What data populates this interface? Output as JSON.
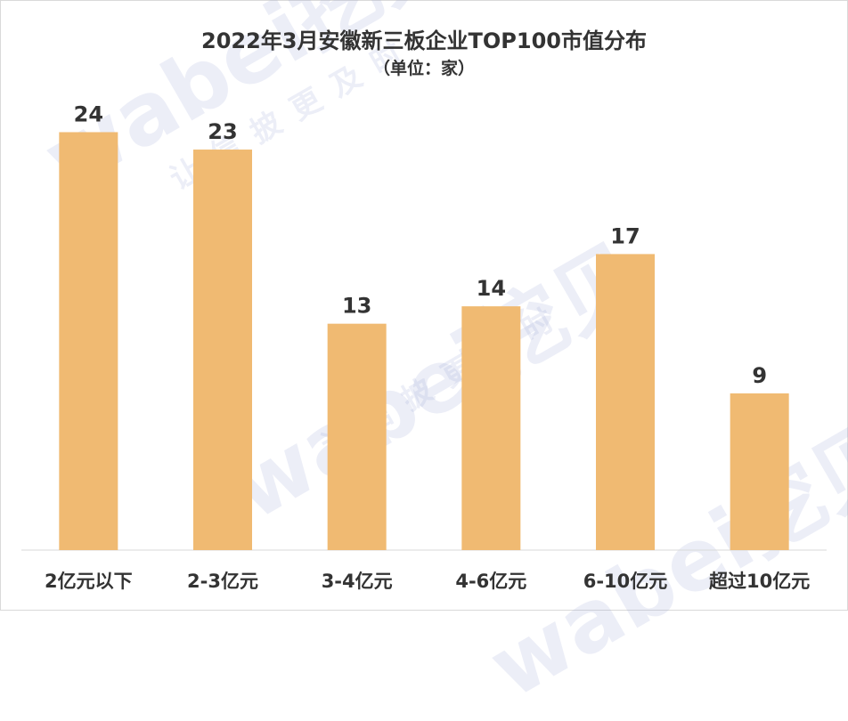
{
  "chart_data": {
    "type": "bar",
    "title": "2022年3月安徽新三板企业TOP100市值分布",
    "subtitle": "（单位：家）",
    "categories": [
      "2亿元以下",
      "2-3亿元",
      "3-4亿元",
      "4-6亿元",
      "6-10亿元",
      "超过10亿元"
    ],
    "values": [
      24,
      23,
      13,
      14,
      17,
      9
    ],
    "bar_color": "#F0BA72",
    "ylim": [
      0,
      27.5
    ],
    "grid": false,
    "legend": "none"
  },
  "watermark": {
    "brand": "wabei挖贝",
    "slogan": "让信披更及时"
  }
}
